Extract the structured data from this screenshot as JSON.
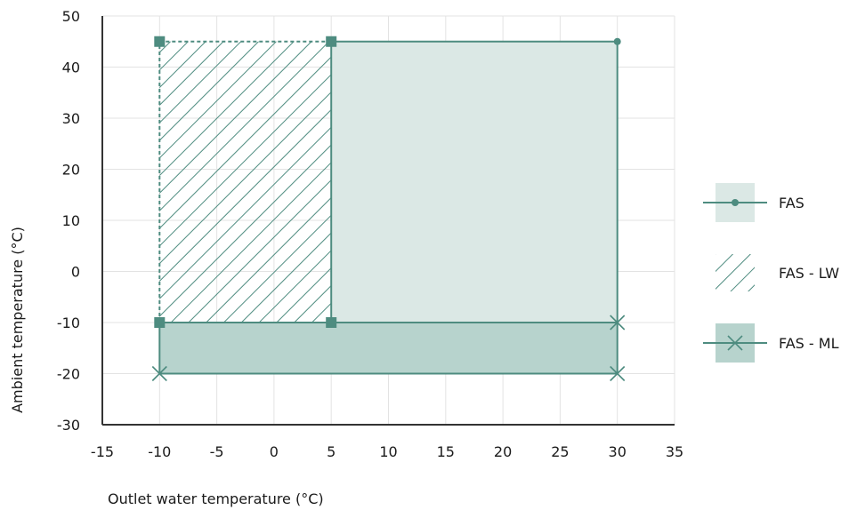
{
  "chart_data": {
    "type": "area",
    "xlabel": "Outlet water temperature (°C)",
    "ylabel": "Ambient temperature (°C)",
    "xlim": [
      -15,
      35
    ],
    "ylim": [
      -30,
      50
    ],
    "xticks": [
      -15,
      -10,
      -5,
      0,
      5,
      10,
      15,
      20,
      25,
      30,
      35
    ],
    "yticks": [
      -30,
      -20,
      -10,
      0,
      10,
      20,
      30,
      40,
      50
    ],
    "grid": true,
    "legend_position": "right",
    "series": [
      {
        "name": "FAS",
        "fill": "plain-light",
        "marker": "dot",
        "polygon": [
          [
            5,
            -10
          ],
          [
            5,
            45
          ],
          [
            30,
            45
          ],
          [
            30,
            -10
          ]
        ],
        "points": [
          [
            30,
            45
          ]
        ]
      },
      {
        "name": "FAS - LW",
        "fill": "hatched",
        "marker": "square",
        "polygon": [
          [
            -10,
            -10
          ],
          [
            -10,
            45
          ],
          [
            5,
            45
          ],
          [
            5,
            -10
          ]
        ],
        "points": [
          [
            -10,
            45
          ],
          [
            5,
            45
          ],
          [
            -10,
            -10
          ],
          [
            5,
            -10
          ]
        ]
      },
      {
        "name": "FAS - ML",
        "fill": "plain-dark",
        "marker": "x",
        "polygon": [
          [
            -10,
            -20
          ],
          [
            -10,
            -10
          ],
          [
            30,
            -10
          ],
          [
            30,
            -20
          ]
        ],
        "points": [
          [
            -10,
            -20
          ],
          [
            30,
            -20
          ],
          [
            30,
            -10
          ]
        ]
      }
    ]
  },
  "colors": {
    "line": "#4e8c80",
    "fill_light": "#dbe8e5",
    "fill_dark": "#b7d3cd",
    "grid": "#e3e3e3",
    "axis": "#333333"
  }
}
